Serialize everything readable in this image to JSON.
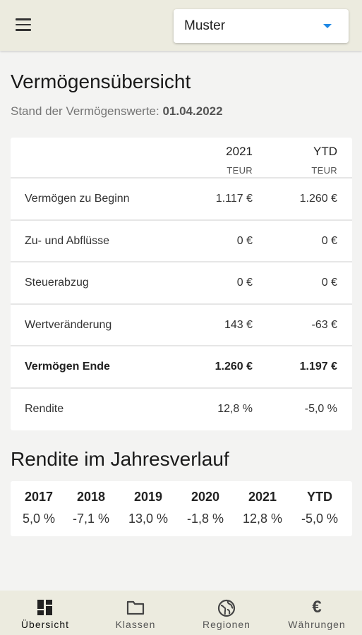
{
  "header": {
    "select_value": "Muster"
  },
  "overview": {
    "title": "Vermögensübersicht",
    "stand_label": "Stand der Vermögenswerte: ",
    "stand_date": "01.04.2022"
  },
  "table": {
    "columns": [
      {
        "year": "2021",
        "unit": "TEUR"
      },
      {
        "year": "YTD",
        "unit": "TEUR"
      }
    ],
    "rows": [
      {
        "label": "Vermögen zu Beginn",
        "v1": "1.117 €",
        "v2": "1.260 €"
      },
      {
        "label": "Zu- und Abflüsse",
        "v1": "0 €",
        "v2": "0 €"
      },
      {
        "label": "Steuerabzug",
        "v1": "0 €",
        "v2": "0 €"
      },
      {
        "label": "Wertveränderung",
        "v1": "143 €",
        "v2": "-63 €"
      },
      {
        "label": "Vermögen Ende",
        "v1": "1.260 €",
        "v2": "1.197 €"
      },
      {
        "label": "Rendite",
        "v1": "12,8 %",
        "v2": "-5,0 %"
      }
    ]
  },
  "returns": {
    "title": "Rendite im Jahresverlauf",
    "items": [
      {
        "year": "2017",
        "pct": "5,0 %"
      },
      {
        "year": "2018",
        "pct": "-7,1 %"
      },
      {
        "year": "2019",
        "pct": "13,0 %"
      },
      {
        "year": "2020",
        "pct": "-1,8 %"
      },
      {
        "year": "2021",
        "pct": "12,8 %"
      },
      {
        "year": "YTD",
        "pct": "-5,0 %"
      }
    ]
  },
  "nav": {
    "items": [
      {
        "label": "Übersicht",
        "icon": "dashboard-icon"
      },
      {
        "label": "Klassen",
        "icon": "folder-icon"
      },
      {
        "label": "Regionen",
        "icon": "globe-icon"
      },
      {
        "label": "Währungen",
        "icon": "euro-icon"
      }
    ]
  }
}
